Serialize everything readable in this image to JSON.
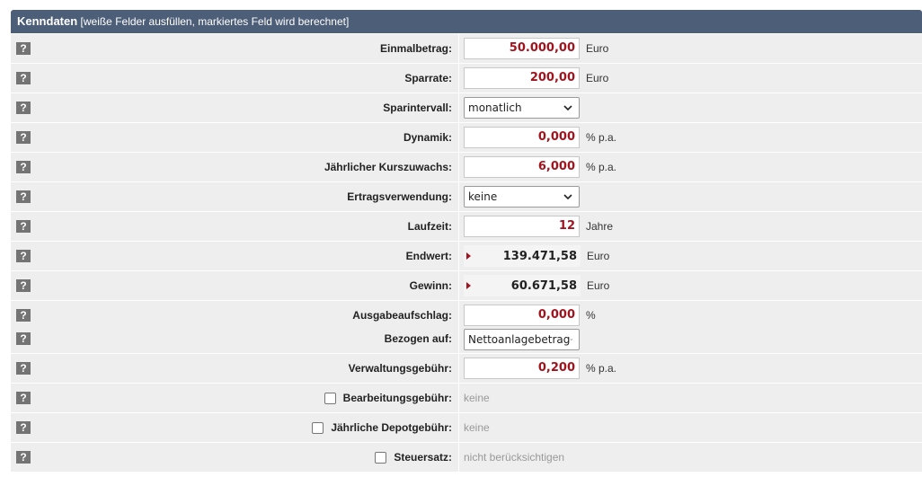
{
  "header": {
    "title": "Kenndaten",
    "subtitle": "[weiße Felder ausfüllen, markiertes Feld wird berechnet]"
  },
  "help_symbol": "?",
  "rows": {
    "einmalbetrag": {
      "label": "Einmalbetrag:",
      "value": "50.000,00",
      "unit": "Euro"
    },
    "sparrate": {
      "label": "Sparrate:",
      "value": "200,00",
      "unit": "Euro"
    },
    "sparintervall": {
      "label": "Sparintervall:",
      "value": "monatlich"
    },
    "dynamik": {
      "label": "Dynamik:",
      "value": "0,000",
      "unit": "% p.a."
    },
    "kurszuwachs": {
      "label": "Jährlicher Kurszuwachs:",
      "value": "6,000",
      "unit": "% p.a."
    },
    "ertragsverwendung": {
      "label": "Ertragsverwendung:",
      "value": "keine"
    },
    "laufzeit": {
      "label": "Laufzeit:",
      "value": "12",
      "unit": "Jahre"
    },
    "endwert": {
      "label": "Endwert:",
      "value": "139.471,58",
      "unit": "Euro"
    },
    "gewinn": {
      "label": "Gewinn:",
      "value": "60.671,58",
      "unit": "Euro"
    },
    "ausgabeaufschlag": {
      "label": "Ausgabeaufschlag:",
      "value": "0,000",
      "unit": "%"
    },
    "bezogen_auf": {
      "label": "Bezogen auf:",
      "value": "Nettoanlagebetrag"
    },
    "verwaltungsgebuehr": {
      "label": "Verwaltungsgebühr:",
      "value": "0,200",
      "unit": "% p.a."
    },
    "bearbeitungsgebuehr": {
      "label": "Bearbeitungsgebühr:",
      "value": "keine",
      "checked": false
    },
    "depotgebuehr": {
      "label": "Jährliche Depotgebühr:",
      "value": "keine",
      "checked": false
    },
    "steuersatz": {
      "label": "Steuersatz:",
      "value": "nicht berücksichtigen",
      "checked": false
    }
  },
  "colors": {
    "header_bg": "#4d5e78",
    "row_bg": "#eeeeee",
    "value_red": "#a0141e",
    "help_bg": "#747474"
  }
}
